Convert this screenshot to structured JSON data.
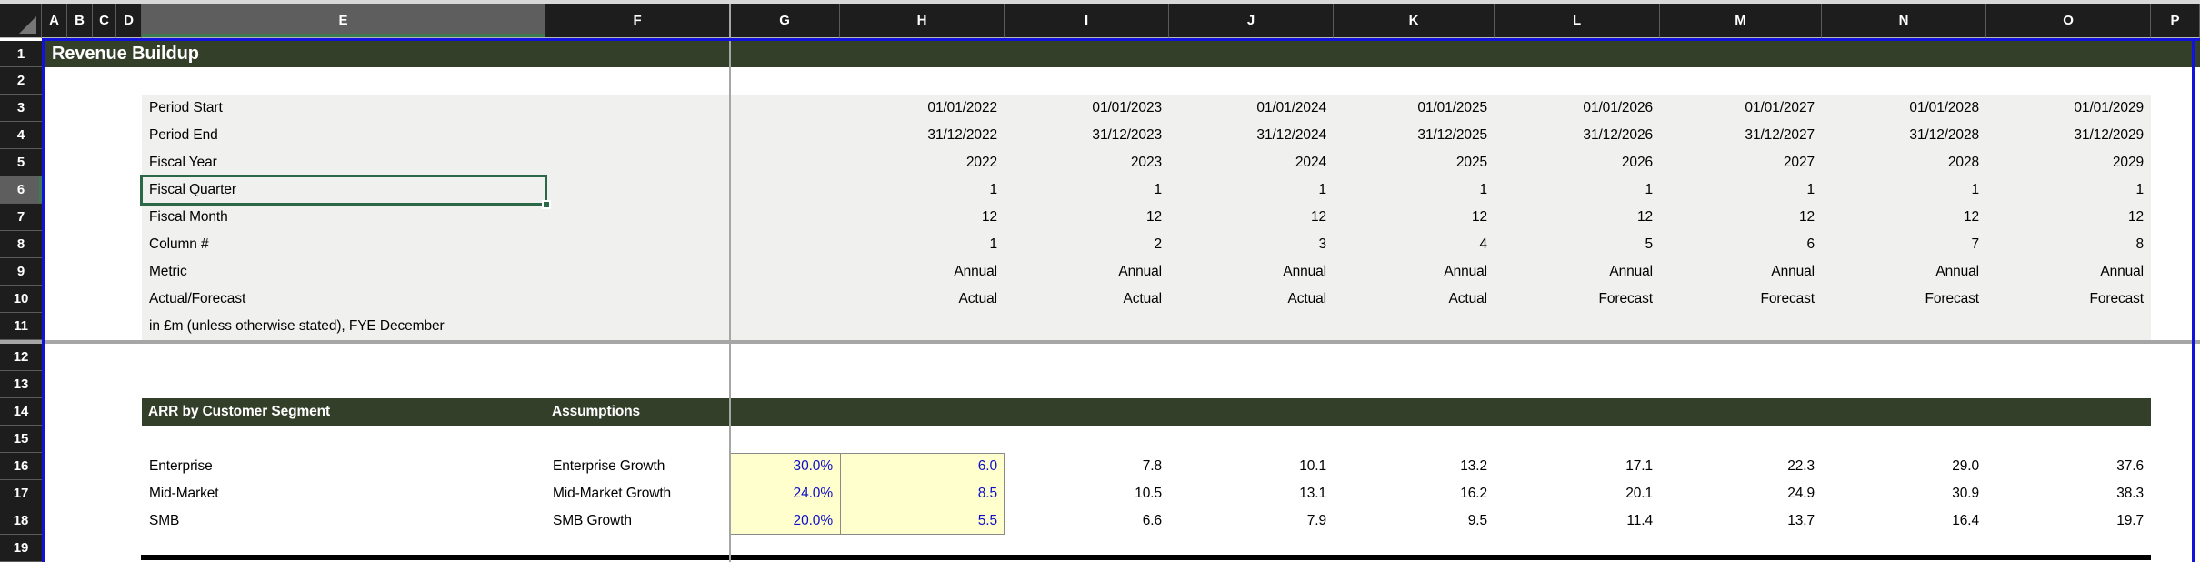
{
  "sheet": {
    "title": "Revenue Buildup",
    "column_headers": [
      "A",
      "B",
      "C",
      "D",
      "E",
      "F",
      "G",
      "H",
      "I",
      "J",
      "K",
      "L",
      "M",
      "N",
      "O",
      "P"
    ],
    "row_numbers": [
      "1",
      "2",
      "3",
      "4",
      "5",
      "6",
      "7",
      "8",
      "9",
      "10",
      "11",
      "12",
      "13",
      "14",
      "15",
      "16",
      "17",
      "18",
      "19"
    ],
    "selected_column": "E",
    "selected_row": "6",
    "active_cell": "E6",
    "active_cell_text": "Fiscal Quarter",
    "frozen_split": {
      "after_column": "F",
      "after_row": "11"
    },
    "meta_rows": [
      {
        "row": "3",
        "label": "Period Start",
        "values": [
          "01/01/2022",
          "01/01/2023",
          "01/01/2024",
          "01/01/2025",
          "01/01/2026",
          "01/01/2027",
          "01/01/2028",
          "01/01/2029"
        ]
      },
      {
        "row": "4",
        "label": "Period End",
        "values": [
          "31/12/2022",
          "31/12/2023",
          "31/12/2024",
          "31/12/2025",
          "31/12/2026",
          "31/12/2027",
          "31/12/2028",
          "31/12/2029"
        ]
      },
      {
        "row": "5",
        "label": "Fiscal Year",
        "values": [
          "2022",
          "2023",
          "2024",
          "2025",
          "2026",
          "2027",
          "2028",
          "2029"
        ]
      },
      {
        "row": "6",
        "label": "Fiscal Quarter",
        "values": [
          "1",
          "1",
          "1",
          "1",
          "1",
          "1",
          "1",
          "1"
        ]
      },
      {
        "row": "7",
        "label": "Fiscal Month",
        "values": [
          "12",
          "12",
          "12",
          "12",
          "12",
          "12",
          "12",
          "12"
        ]
      },
      {
        "row": "8",
        "label": "Column #",
        "values": [
          "1",
          "2",
          "3",
          "4",
          "5",
          "6",
          "7",
          "8"
        ]
      },
      {
        "row": "9",
        "label": "Metric",
        "values": [
          "Annual",
          "Annual",
          "Annual",
          "Annual",
          "Annual",
          "Annual",
          "Annual",
          "Annual"
        ]
      },
      {
        "row": "10",
        "label": "Actual/Forecast",
        "values": [
          "Actual",
          "Actual",
          "Actual",
          "Actual",
          "Forecast",
          "Forecast",
          "Forecast",
          "Forecast"
        ]
      },
      {
        "row": "11",
        "label": "in £m (unless otherwise stated), FYE December",
        "values": [
          "",
          "",
          "",
          "",
          "",
          "",
          "",
          ""
        ]
      }
    ],
    "section": {
      "row": "14",
      "title": "ARR by Customer Segment",
      "assumptions_label": "Assumptions",
      "data_rows": [
        {
          "row": "16",
          "segment": "Enterprise",
          "assumption": "Enterprise Growth",
          "growth_rate": "30.0%",
          "start_value": "6.0",
          "values": [
            "7.8",
            "10.1",
            "13.2",
            "17.1",
            "22.3",
            "29.0",
            "37.6"
          ]
        },
        {
          "row": "17",
          "segment": "Mid-Market",
          "assumption": "Mid-Market Growth",
          "growth_rate": "24.0%",
          "start_value": "8.5",
          "values": [
            "10.5",
            "13.1",
            "16.2",
            "20.1",
            "24.9",
            "30.9",
            "38.3"
          ]
        },
        {
          "row": "18",
          "segment": "SMB",
          "assumption": "SMB Growth",
          "growth_rate": "20.0%",
          "start_value": "5.5",
          "values": [
            "6.6",
            "7.9",
            "9.5",
            "11.4",
            "13.7",
            "16.4",
            "19.7"
          ]
        }
      ]
    },
    "colors": {
      "banner_green": "#343f2a",
      "accent_green": "#3d7a50",
      "selection_green": "#2a6847",
      "input_text_blue": "#0e0ec8",
      "input_fill_yellow": "#ffffcd",
      "pane_line_gray": "#a6a6a6",
      "page_break_blue": "#1212dd",
      "header_dark": "#1d1d1d",
      "header_selected_gray": "#5e5e5e",
      "meta_block_gray": "#f0f0ee"
    }
  }
}
